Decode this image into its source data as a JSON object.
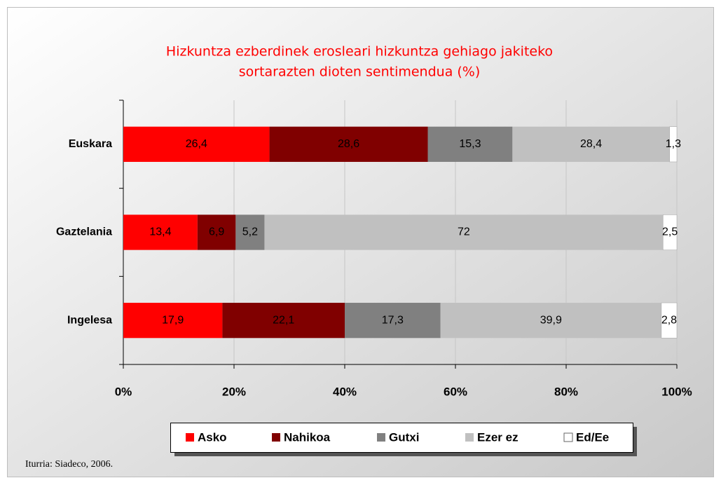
{
  "chart_data": {
    "type": "stacked-barh",
    "title": [
      "Hizkuntza ezberdinek erosleari hizkuntza gehiago jakiteko",
      "sortarazten dioten sentimendua (%)"
    ],
    "categories": [
      "Euskara",
      "Gaztelania",
      "Ingelesa"
    ],
    "series": [
      {
        "name": "Asko",
        "color": "#ff0000",
        "values": [
          26.4,
          13.4,
          17.9
        ],
        "value_labels": [
          "26,4",
          "13,4",
          "17,9"
        ]
      },
      {
        "name": "Nahikoa",
        "color": "#800000",
        "values": [
          28.6,
          6.9,
          22.1
        ],
        "value_labels": [
          "28,6",
          "6,9",
          "22,1"
        ]
      },
      {
        "name": "Gutxi",
        "color": "#808080",
        "values": [
          15.3,
          5.2,
          17.3
        ],
        "value_labels": [
          "15,3",
          "5,2",
          "17,3"
        ]
      },
      {
        "name": "Ezer ez",
        "color": "#c0c0c0",
        "values": [
          28.4,
          72,
          39.9
        ],
        "value_labels": [
          "28,4",
          "72",
          "39,9"
        ]
      },
      {
        "name": "Ed/Ee",
        "color": "#ffffff",
        "values": [
          1.3,
          2.5,
          2.8
        ],
        "value_labels": [
          "1,3",
          "2,5",
          "2,8"
        ]
      }
    ],
    "xlim": [
      0,
      100
    ],
    "xticks": [
      {
        "value": 0,
        "label": "0%"
      },
      {
        "value": 20,
        "label": "20%"
      },
      {
        "value": 40,
        "label": "40%"
      },
      {
        "value": 60,
        "label": "60%"
      },
      {
        "value": 80,
        "label": "80%"
      },
      {
        "value": 100,
        "label": "100%"
      }
    ],
    "grid": true,
    "legend": "bottom",
    "source": "Iturria: Siadeco, 2006."
  }
}
